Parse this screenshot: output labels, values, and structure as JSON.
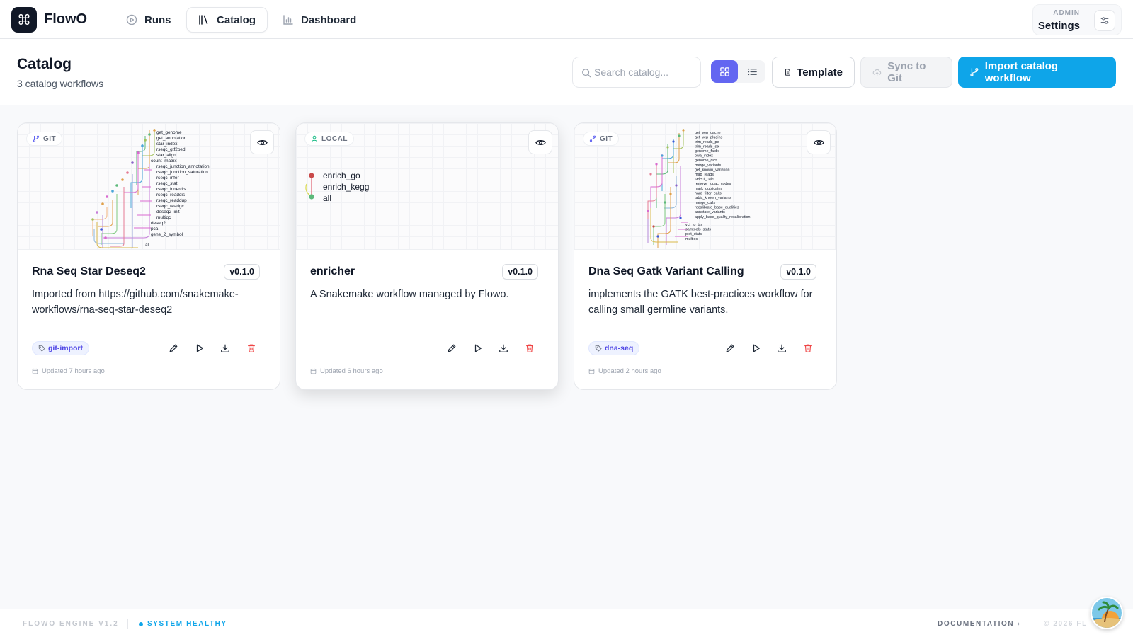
{
  "app": {
    "name": "FlowO",
    "logo_glyph": "⌘"
  },
  "nav": {
    "tabs": [
      {
        "label": "Runs",
        "icon": "play-circle-icon",
        "active": false
      },
      {
        "label": "Catalog",
        "icon": "library-icon",
        "active": true
      },
      {
        "label": "Dashboard",
        "icon": "bar-chart-icon",
        "active": false
      }
    ],
    "settings": {
      "sup": "ADMIN",
      "label": "Settings",
      "icon": "sliders-icon"
    }
  },
  "header": {
    "title": "Catalog",
    "subtitle": "3 catalog workflows",
    "search_placeholder": "Search catalog...",
    "view_mode": "grid",
    "template_label": "Template",
    "sync_label": "Sync to Git",
    "import_label": "Import catalog workflow"
  },
  "cards": [
    {
      "source": "GIT",
      "source_icon": "git-branch-icon",
      "title": "Rna Seq Star Deseq2",
      "version": "v0.1.0",
      "description": "Imported from https://github.com/snakemake-workflows/rna-seq-star-deseq2",
      "tag": "git-import",
      "updated": "Updated 7 hours ago",
      "dag_nodes": [
        "get_genome",
        "get_annotation",
        "star_index",
        "rseqc_gtf2bed",
        "star_align",
        "count_matrix",
        "rseqc_junction_annotation",
        "rseqc_junction_saturation",
        "rseqc_infer",
        "rseqc_stat",
        "rseqc_innerdis",
        "rseqc_readdis",
        "rseqc_readdup",
        "rseqc_readgc",
        "deseq2_init",
        "multiqc",
        "deseq2",
        "pca",
        "gene_2_symbol",
        "all"
      ]
    },
    {
      "source": "LOCAL",
      "source_icon": "user-icon",
      "title": "enricher",
      "version": "v0.1.0",
      "description": "A Snakemake workflow managed by Flowo.",
      "tag": "",
      "updated": "Updated 6 hours ago",
      "dag_nodes": [
        "enrich_go",
        "enrich_kegg",
        "all"
      ]
    },
    {
      "source": "GIT",
      "source_icon": "git-branch-icon",
      "title": "Dna Seq Gatk Variant Calling",
      "version": "v0.1.0",
      "description": "implements the GATK best-practices workflow for calling small germline variants.",
      "tag": "dna-seq",
      "updated": "Updated 2 hours ago",
      "dag_nodes": [
        "get_vep_cache",
        "get_vep_plugins",
        "trim_reads_pe",
        "trim_reads_se",
        "genome_faidx",
        "bwa_index",
        "genome_dict",
        "merge_variants",
        "get_known_variation",
        "map_reads",
        "select_calls",
        "remove_iupac_codes",
        "mark_duplicates",
        "hard_filter_calls",
        "tabix_known_variants",
        "merge_calls",
        "recalibrate_base_qualities",
        "annotate_variants",
        "apply_base_quality_recalibration",
        "vcf_to_tsv",
        "samtools_stats",
        "plot_stats",
        "multiqc"
      ]
    }
  ],
  "footer": {
    "engine": "FLOWO ENGINE V1.2",
    "health": "SYSTEM HEALTHY",
    "docs": "DOCUMENTATION",
    "copyright": "© 2026 FL"
  },
  "colors": {
    "accent": "#0ea5e9",
    "view_toggle_active": "#6366f1",
    "tag_text": "#4f46e5",
    "delete": "#ef4444"
  }
}
